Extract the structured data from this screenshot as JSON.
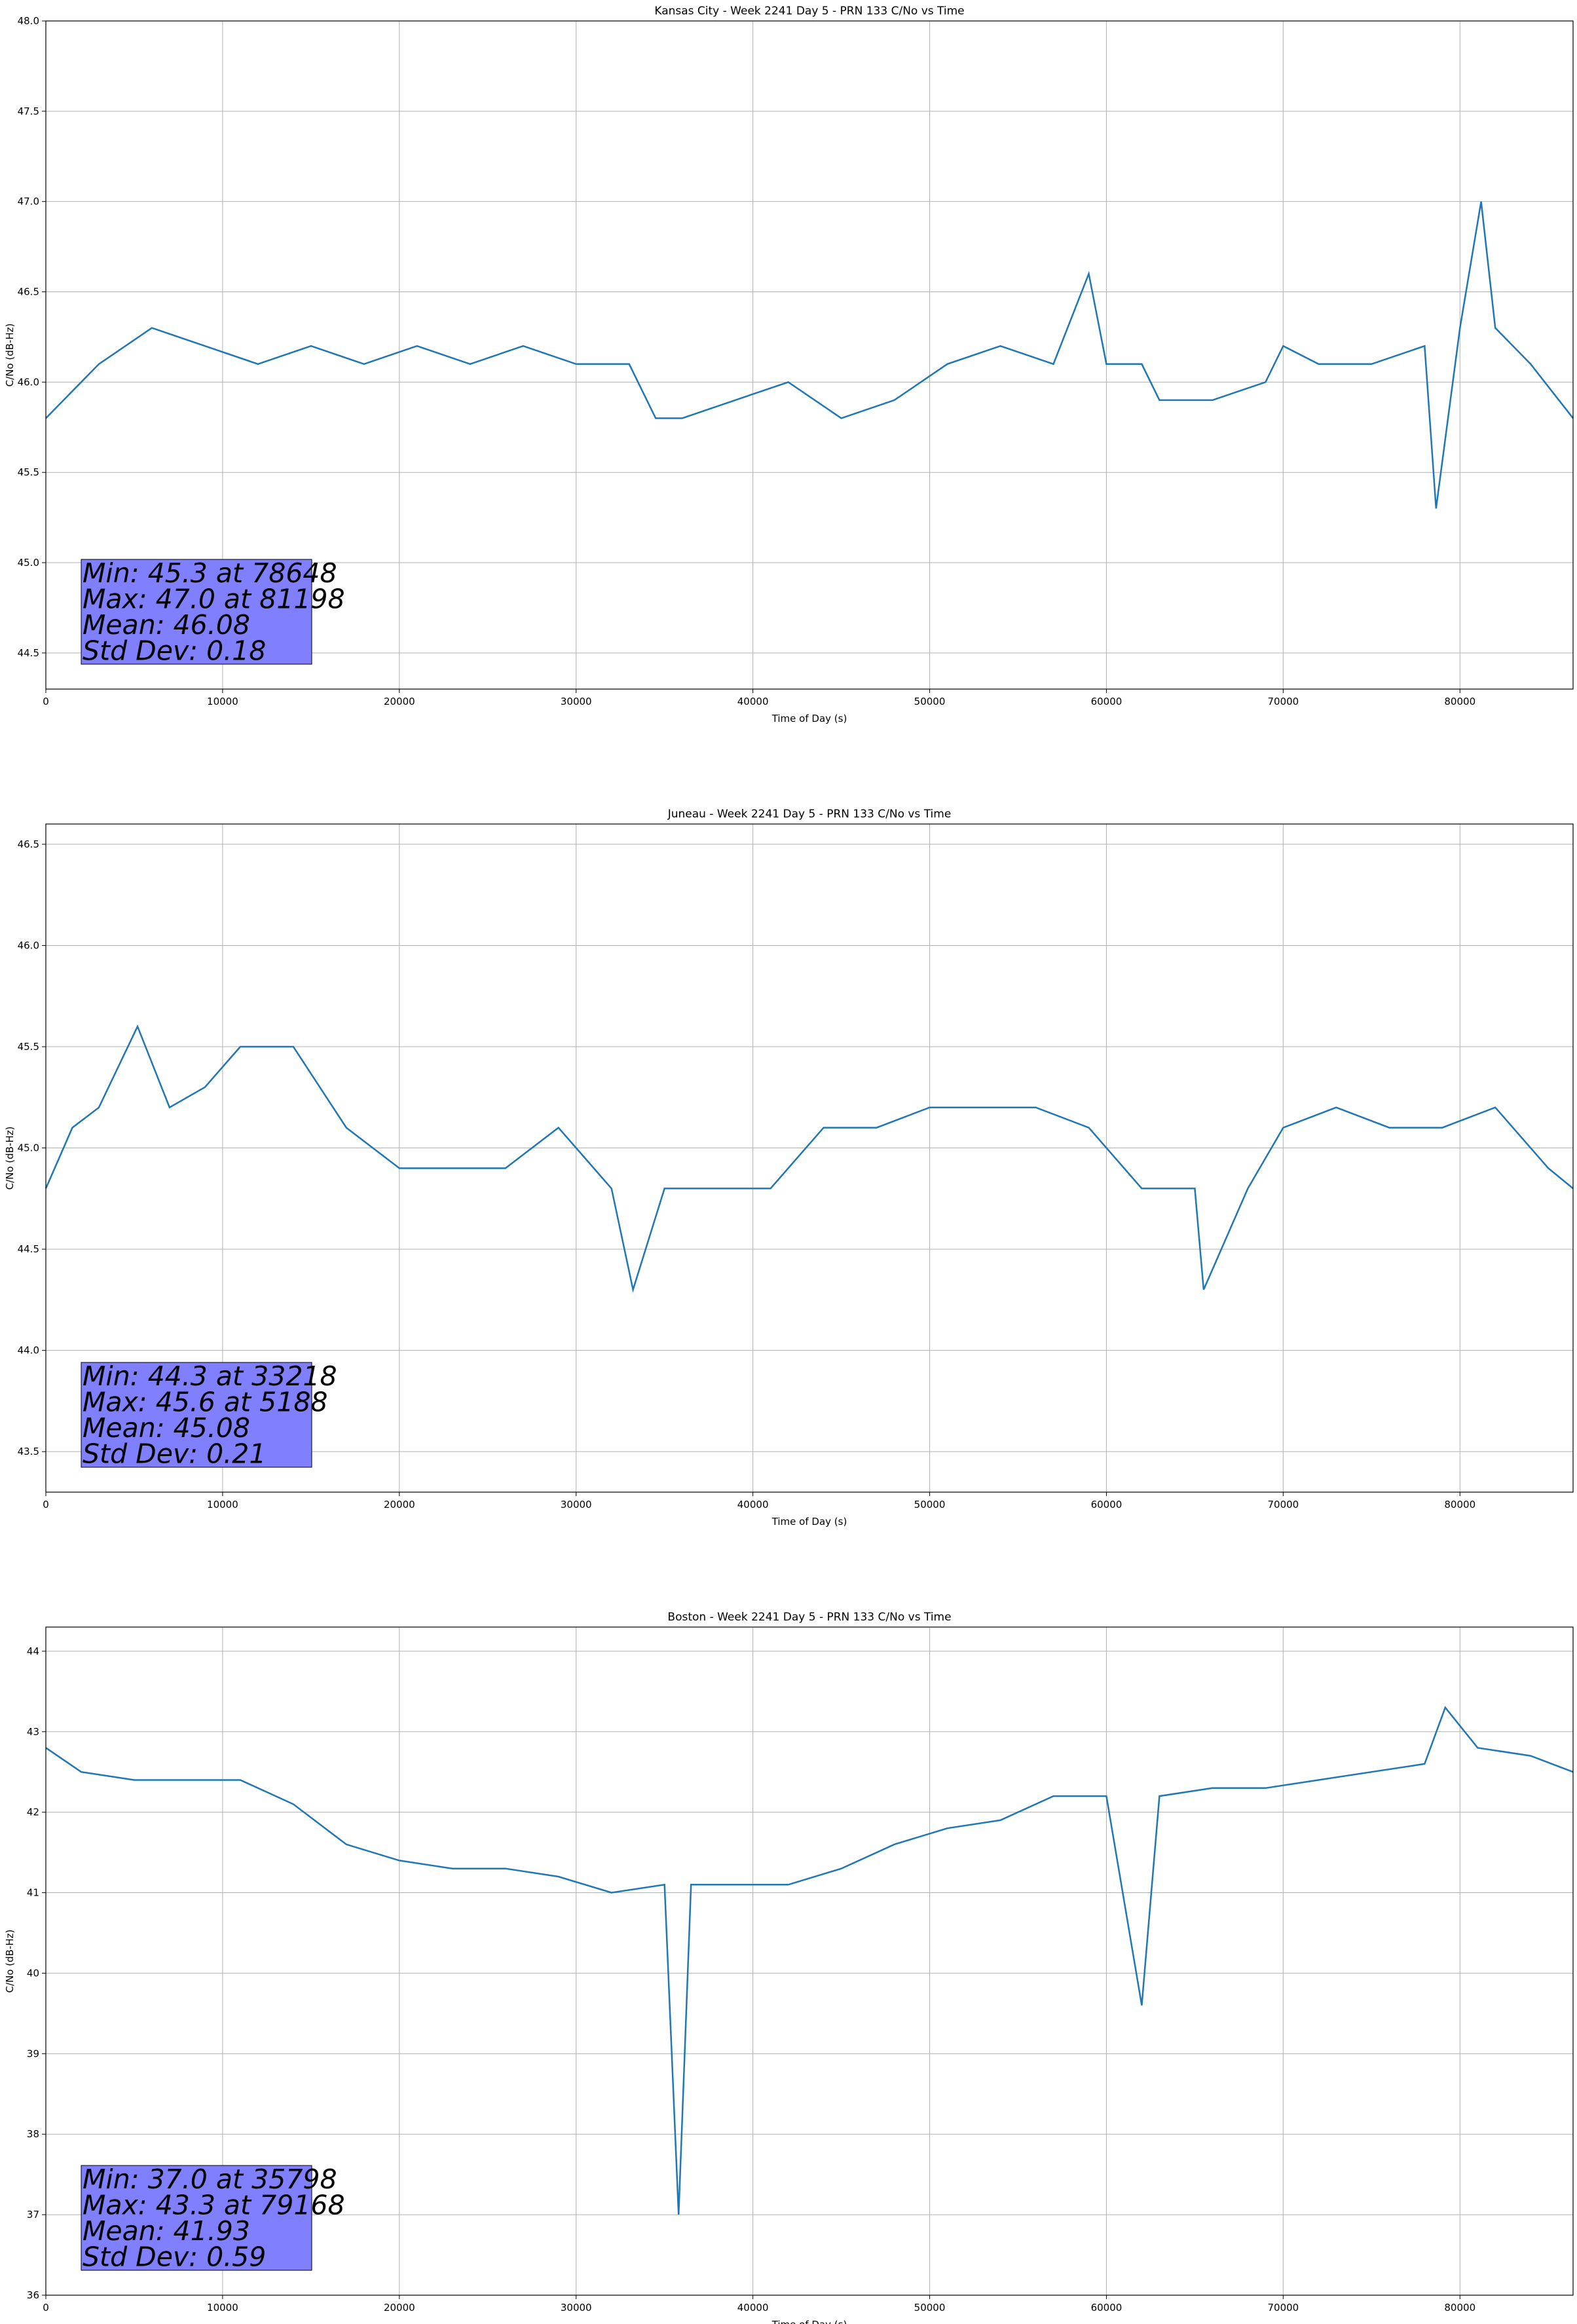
{
  "figure": {
    "background": "#ffffff",
    "line_color": "#1f77b4",
    "grid_color": "#b0b0b0",
    "stats_box_color": "#8080ff"
  },
  "chart_data": [
    {
      "type": "line",
      "title": "Kansas City - Week 2241 Day 5 - PRN 133 C/No vs Time",
      "xlabel": "Time of Day (s)",
      "ylabel": "C/No (dB-Hz)",
      "xlim": [
        0,
        86400
      ],
      "ylim": [
        44.3,
        48.0
      ],
      "xticks": [
        0,
        10000,
        20000,
        30000,
        40000,
        50000,
        60000,
        70000,
        80000
      ],
      "xtick_labels": [
        "0",
        "10000",
        "20000",
        "30000",
        "40000",
        "50000",
        "60000",
        "70000",
        "80000"
      ],
      "yticks": [
        44.5,
        45.0,
        45.5,
        46.0,
        46.5,
        47.0,
        47.5,
        48.0
      ],
      "ytick_labels": [
        "44.5",
        "45.0",
        "45.5",
        "46.0",
        "46.5",
        "47.0",
        "47.5",
        "48.0"
      ],
      "grid": true,
      "stats": [
        "Min: 45.3 at 78648",
        "Max: 47.0 at 81198",
        "Mean: 46.08",
        "Std Dev: 0.18"
      ],
      "series": [
        {
          "x": [
            0,
            3000,
            6000,
            9000,
            12000,
            15000,
            18000,
            21000,
            24000,
            27000,
            30000,
            33000,
            34500,
            36000,
            39000,
            42000,
            45000,
            48000,
            51000,
            54000,
            57000,
            59000,
            60000,
            62000,
            63000,
            66000,
            69000,
            70000,
            72000,
            75000,
            78000,
            78648,
            80000,
            81198,
            82000,
            84000,
            86400
          ],
          "y": [
            45.8,
            46.1,
            46.3,
            46.2,
            46.1,
            46.2,
            46.1,
            46.2,
            46.1,
            46.2,
            46.1,
            46.1,
            45.8,
            45.8,
            45.9,
            46.0,
            45.8,
            45.9,
            46.1,
            46.2,
            46.1,
            46.6,
            46.1,
            46.1,
            45.9,
            45.9,
            46.0,
            46.2,
            46.1,
            46.1,
            46.2,
            45.3,
            46.3,
            47.0,
            46.3,
            46.1,
            45.8
          ]
        }
      ]
    },
    {
      "type": "line",
      "title": "Juneau - Week 2241 Day 5 - PRN 133 C/No vs Time",
      "xlabel": "Time of Day (s)",
      "ylabel": "C/No (dB-Hz)",
      "xlim": [
        0,
        86400
      ],
      "ylim": [
        43.3,
        46.6
      ],
      "xticks": [
        0,
        10000,
        20000,
        30000,
        40000,
        50000,
        60000,
        70000,
        80000
      ],
      "xtick_labels": [
        "0",
        "10000",
        "20000",
        "30000",
        "40000",
        "50000",
        "60000",
        "70000",
        "80000"
      ],
      "yticks": [
        43.5,
        44.0,
        44.5,
        45.0,
        45.5,
        46.0,
        46.5
      ],
      "ytick_labels": [
        "43.5",
        "44.0",
        "44.5",
        "45.0",
        "45.5",
        "46.0",
        "46.5"
      ],
      "grid": true,
      "stats": [
        "Min: 44.3 at 33218",
        "Max: 45.6 at 5188",
        "Mean: 45.08",
        "Std Dev: 0.21"
      ],
      "series": [
        {
          "x": [
            0,
            1500,
            3000,
            5188,
            7000,
            9000,
            11000,
            14000,
            17000,
            20000,
            23000,
            26000,
            29000,
            32000,
            33218,
            35000,
            38000,
            41000,
            44000,
            47000,
            50000,
            53000,
            56000,
            59000,
            62000,
            65000,
            65500,
            68000,
            70000,
            73000,
            76000,
            79000,
            82000,
            85000,
            86400
          ],
          "y": [
            44.8,
            45.1,
            45.2,
            45.6,
            45.2,
            45.3,
            45.5,
            45.5,
            45.1,
            44.9,
            44.9,
            44.9,
            45.1,
            44.8,
            44.3,
            44.8,
            44.8,
            44.8,
            45.1,
            45.1,
            45.2,
            45.2,
            45.2,
            45.1,
            44.8,
            44.8,
            44.3,
            44.8,
            45.1,
            45.2,
            45.1,
            45.1,
            45.2,
            44.9,
            44.8
          ]
        }
      ]
    },
    {
      "type": "line",
      "title": "Boston - Week 2241 Day 5 - PRN 133 C/No vs Time",
      "xlabel": "Time of Day (s)",
      "ylabel": "C/No (dB-Hz)",
      "xlim": [
        0,
        86400
      ],
      "ylim": [
        36,
        44.3
      ],
      "xticks": [
        0,
        10000,
        20000,
        30000,
        40000,
        50000,
        60000,
        70000,
        80000
      ],
      "xtick_labels": [
        "0",
        "10000",
        "20000",
        "30000",
        "40000",
        "50000",
        "60000",
        "70000",
        "80000"
      ],
      "yticks": [
        36,
        37,
        38,
        39,
        40,
        41,
        42,
        43,
        44
      ],
      "ytick_labels": [
        "36",
        "37",
        "38",
        "39",
        "40",
        "41",
        "42",
        "43",
        "44"
      ],
      "grid": true,
      "stats": [
        "Min: 37.0 at 35798",
        "Max: 43.3 at 79168",
        "Mean: 41.93",
        "Std Dev: 0.59"
      ],
      "series": [
        {
          "x": [
            0,
            2000,
            5000,
            8000,
            11000,
            14000,
            17000,
            20000,
            23000,
            26000,
            29000,
            32000,
            35000,
            35798,
            36500,
            39000,
            42000,
            45000,
            48000,
            51000,
            54000,
            57000,
            60000,
            62000,
            63000,
            66000,
            69000,
            72000,
            75000,
            78000,
            79168,
            81000,
            84000,
            86400
          ],
          "y": [
            42.8,
            42.5,
            42.4,
            42.4,
            42.4,
            42.1,
            41.6,
            41.4,
            41.3,
            41.3,
            41.2,
            41.0,
            41.1,
            37.0,
            41.1,
            41.1,
            41.1,
            41.3,
            41.6,
            41.8,
            41.9,
            42.2,
            42.2,
            39.6,
            42.2,
            42.3,
            42.3,
            42.4,
            42.5,
            42.6,
            43.3,
            42.8,
            42.7,
            42.5
          ]
        }
      ]
    }
  ]
}
